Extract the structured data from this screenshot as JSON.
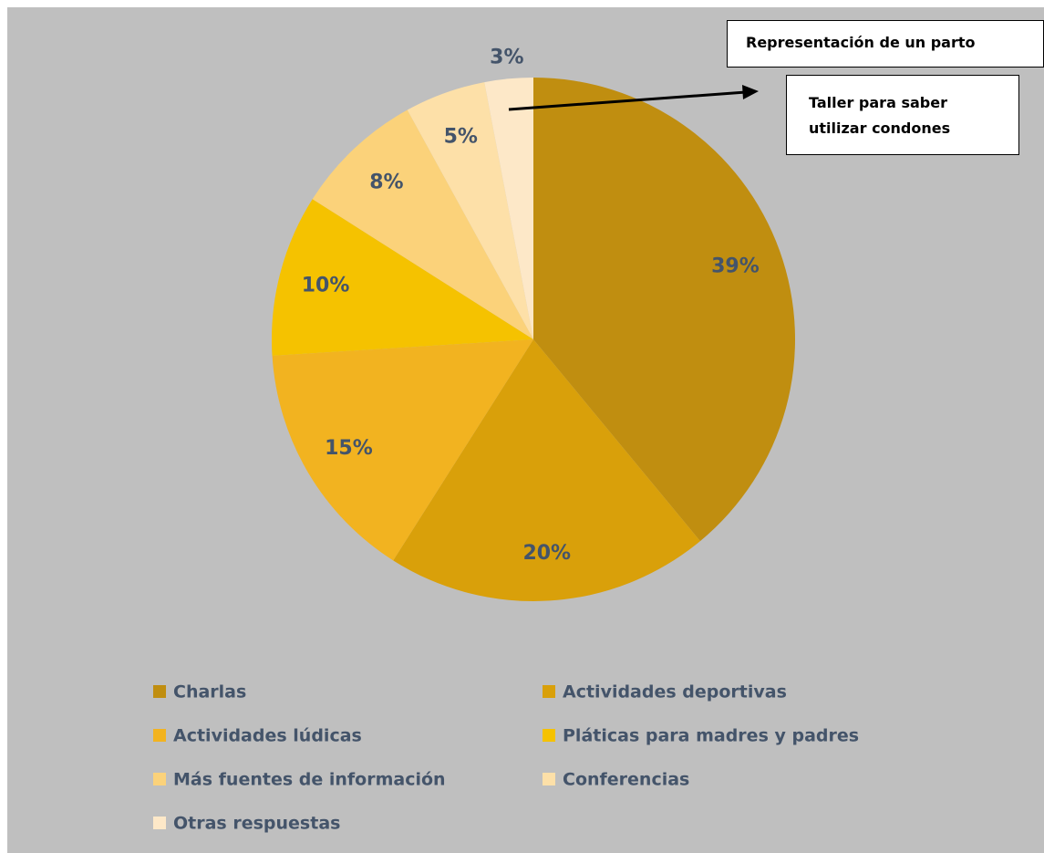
{
  "chart_data": {
    "type": "pie",
    "categories": [
      "Charlas",
      "Actividades deportivas",
      "Actividades lúdicas",
      "Pláticas para madres y padres",
      "Más fuentes de información",
      "Conferencias",
      "Otras respuestas"
    ],
    "values": [
      39,
      20,
      15,
      10,
      8,
      5,
      3
    ],
    "value_labels": [
      "39%",
      "20%",
      "15%",
      "10%",
      "8%",
      "5%",
      "3%"
    ],
    "colors": [
      "#c08e10",
      "#d9a00a",
      "#f2b320",
      "#f5c200",
      "#fbd27a",
      "#fde0a8",
      "#fde8c8"
    ],
    "annotations": [
      "Representación de un parto",
      "Taller para saber utilizar condones"
    ],
    "legend": "bottom"
  }
}
